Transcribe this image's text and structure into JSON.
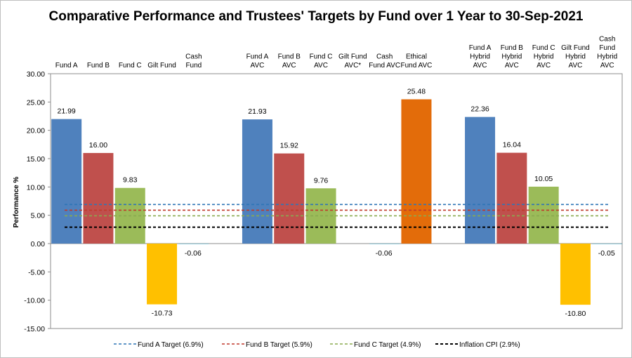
{
  "chart_data": {
    "type": "bar",
    "title": "Comparative Performance and Trustees' Targets by Fund over 1 Year to 30-Sep-2021",
    "ylabel": "Performance %",
    "xlabel": "",
    "ylim": [
      -15,
      30
    ],
    "ytick_step": 5,
    "yticks": [
      "-15.00",
      "-10.00",
      "-5.00",
      "0.00",
      "5.00",
      "10.00",
      "15.00",
      "20.00",
      "25.00",
      "30.00"
    ],
    "grid": false,
    "legend_position": "bottom",
    "categories": [
      {
        "label": [
          "Fund A"
        ],
        "value": 21.99,
        "display": "21.99",
        "color": "#4f81bd"
      },
      {
        "label": [
          "Fund B"
        ],
        "value": 16.0,
        "display": "16.00",
        "color": "#c0504d"
      },
      {
        "label": [
          "Fund C"
        ],
        "value": 9.83,
        "display": "9.83",
        "color": "#9bbb59"
      },
      {
        "label": [
          "Gilt Fund"
        ],
        "value": -10.73,
        "display": "-10.73",
        "color": "#ffc000"
      },
      {
        "label": [
          "Cash",
          "Fund"
        ],
        "value": -0.06,
        "display": "-0.06",
        "color": "#4bacc6"
      },
      {
        "label": [],
        "value": null,
        "display": "",
        "color": ""
      },
      {
        "label": [
          "Fund A",
          "AVC"
        ],
        "value": 21.93,
        "display": "21.93",
        "color": "#4f81bd"
      },
      {
        "label": [
          "Fund B",
          "AVC"
        ],
        "value": 15.92,
        "display": "15.92",
        "color": "#c0504d"
      },
      {
        "label": [
          "Fund C",
          "AVC"
        ],
        "value": 9.76,
        "display": "9.76",
        "color": "#9bbb59"
      },
      {
        "label": [
          "Gilt Fund",
          "AVC*"
        ],
        "value": null,
        "display": "",
        "color": "#ffc000"
      },
      {
        "label": [
          "Cash",
          "Fund AVC"
        ],
        "value": -0.06,
        "display": "-0.06",
        "color": "#4bacc6"
      },
      {
        "label": [
          "Ethical",
          "Fund AVC"
        ],
        "value": 25.48,
        "display": "25.48",
        "color": "#e36c0a"
      },
      {
        "label": [],
        "value": null,
        "display": "",
        "color": ""
      },
      {
        "label": [
          "Fund A",
          "Hybrid",
          "AVC"
        ],
        "value": 22.36,
        "display": "22.36",
        "color": "#4f81bd"
      },
      {
        "label": [
          "Fund B",
          "Hybrid",
          "AVC"
        ],
        "value": 16.04,
        "display": "16.04",
        "color": "#c0504d"
      },
      {
        "label": [
          "Fund C",
          "Hybrid",
          "AVC"
        ],
        "value": 10.05,
        "display": "10.05",
        "color": "#9bbb59"
      },
      {
        "label": [
          "Gilt Fund",
          "Hybrid",
          "AVC"
        ],
        "value": -10.8,
        "display": "-10.80",
        "color": "#ffc000"
      },
      {
        "label": [
          "Cash",
          "Fund",
          "Hybrid",
          "AVC"
        ],
        "value": -0.05,
        "display": "-0.05",
        "color": "#4bacc6"
      }
    ],
    "target_lines": [
      {
        "name": "Fund A Target (6.9%)",
        "value": 6.9,
        "color": "#2e75b6"
      },
      {
        "name": "Fund B Target (5.9%)",
        "value": 5.9,
        "color": "#c0392b"
      },
      {
        "name": "Fund C Target (4.9%)",
        "value": 4.9,
        "color": "#8aaa4f"
      },
      {
        "name": "Inflation CPI (2.9%)",
        "value": 2.9,
        "color": "#000000"
      }
    ]
  }
}
